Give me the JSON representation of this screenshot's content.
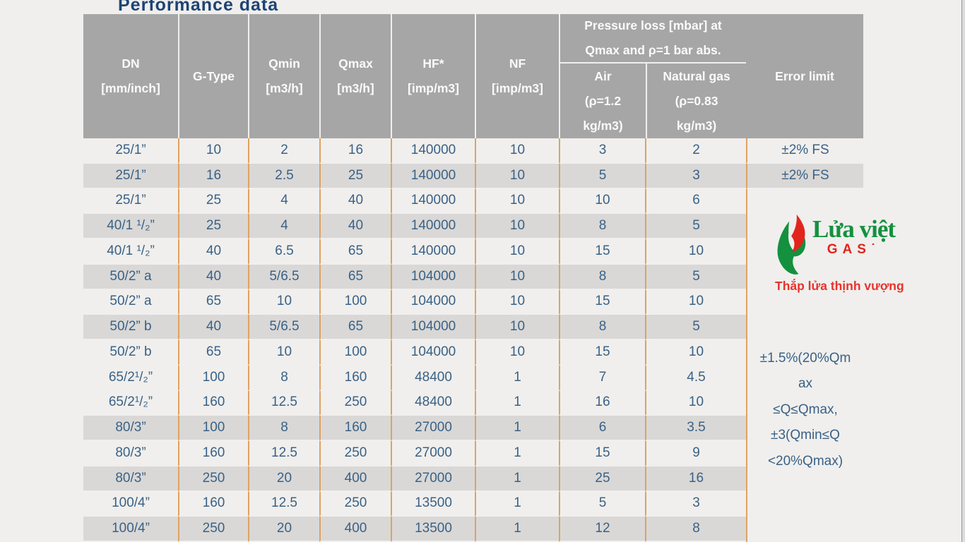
{
  "title": "Performance data",
  "header": {
    "dn": "DN\n[mm/inch]",
    "g_type": "G-Type",
    "qmin": "Qmin\n[m3/h]",
    "qmax": "Qmax\n[m3/h]",
    "hf": "HF*\n[imp/m3]",
    "nf": "NF\n[imp/m3]",
    "pressure_group": "Pressure loss [mbar] at\nQmax and ρ=1 bar abs.",
    "air": "Air\n(ρ=1.2\nkg/m3)",
    "natural_gas": "Natural gas\n(ρ=0.83\nkg/m3)",
    "error_limit": "Error limit"
  },
  "rows": [
    {
      "dn": "25/1”",
      "g_type": "10",
      "qmin": "2",
      "qmax": "16",
      "hf": "140000",
      "nf": "10",
      "air": "3",
      "gas": "2",
      "error": "±2% FS",
      "shade": "light"
    },
    {
      "dn": "25/1”",
      "g_type": "16",
      "qmin": "2.5",
      "qmax": "25",
      "hf": "140000",
      "nf": "10",
      "air": "5",
      "gas": "3",
      "error": "±2% FS",
      "shade": "gray"
    },
    {
      "dn": "25/1”",
      "g_type": "25",
      "qmin": "4",
      "qmax": "40",
      "hf": "140000",
      "nf": "10",
      "air": "10",
      "gas": "6",
      "error": null,
      "shade": "light"
    },
    {
      "dn": "40/1 ¹/₂”",
      "g_type": "25",
      "qmin": "4",
      "qmax": "40",
      "hf": "140000",
      "nf": "10",
      "air": "8",
      "gas": "5",
      "error": null,
      "shade": "gray"
    },
    {
      "dn": "40/1 ¹/₂”",
      "g_type": "40",
      "qmin": "6.5",
      "qmax": "65",
      "hf": "140000",
      "nf": "10",
      "air": "15",
      "gas": "10",
      "error": null,
      "shade": "light"
    },
    {
      "dn": "50/2” a",
      "g_type": "40",
      "qmin": "5/6.5",
      "qmax": "65",
      "hf": "104000",
      "nf": "10",
      "air": "8",
      "gas": "5",
      "error": null,
      "shade": "gray"
    },
    {
      "dn": "50/2” a",
      "g_type": "65",
      "qmin": "10",
      "qmax": "100",
      "hf": "104000",
      "nf": "10",
      "air": "15",
      "gas": "10",
      "error": null,
      "shade": "light"
    },
    {
      "dn": "50/2” b",
      "g_type": "40",
      "qmin": "5/6.5",
      "qmax": "65",
      "hf": "104000",
      "nf": "10",
      "air": "8",
      "gas": "5",
      "error": null,
      "shade": "gray"
    },
    {
      "dn": "50/2” b",
      "g_type": "65",
      "qmin": "10",
      "qmax": "100",
      "hf": "104000",
      "nf": "10",
      "air": "15",
      "gas": "10",
      "error": null,
      "shade": "light"
    },
    {
      "dn": "65/2¹/₂”",
      "g_type": "100",
      "qmin": "8",
      "qmax": "160",
      "hf": "48400",
      "nf": "1",
      "air": "7",
      "gas": "4.5",
      "error": null,
      "shade": "light"
    },
    {
      "dn": "65/2¹/₂”",
      "g_type": "160",
      "qmin": "12.5",
      "qmax": "250",
      "hf": "48400",
      "nf": "1",
      "air": "16",
      "gas": "10",
      "error": null,
      "shade": "light"
    },
    {
      "dn": "80/3”",
      "g_type": "100",
      "qmin": "8",
      "qmax": "160",
      "hf": "27000",
      "nf": "1",
      "air": "6",
      "gas": "3.5",
      "error": null,
      "shade": "gray"
    },
    {
      "dn": "80/3”",
      "g_type": "160",
      "qmin": "12.5",
      "qmax": "250",
      "hf": "27000",
      "nf": "1",
      "air": "15",
      "gas": "9",
      "error": null,
      "shade": "light"
    },
    {
      "dn": "80/3”",
      "g_type": "250",
      "qmin": "20",
      "qmax": "400",
      "hf": "27000",
      "nf": "1",
      "air": "25",
      "gas": "16",
      "error": null,
      "shade": "gray"
    },
    {
      "dn": "100/4”",
      "g_type": "160",
      "qmin": "12.5",
      "qmax": "250",
      "hf": "13500",
      "nf": "1",
      "air": "5",
      "gas": "3",
      "error": null,
      "shade": "light"
    },
    {
      "dn": "100/4”",
      "g_type": "250",
      "qmin": "20",
      "qmax": "400",
      "hf": "13500",
      "nf": "1",
      "air": "12",
      "gas": "8",
      "error": null,
      "shade": "gray"
    }
  ],
  "error_merged_text": "±1.5%(20%Qm\nax\n≤Q≤Qmax,\n±3(Qmin≤Q\n<20%Qmax)",
  "logo": {
    "brand": "Lửa việt",
    "gas": "GAS˙",
    "tagline": "Thắp lửa thịnh vượng"
  },
  "colors": {
    "header_bg": "#a6a6a6",
    "row_light": "#f0efed",
    "row_gray": "#d9d8d6",
    "cell_border_orange": "#dfa263",
    "body_text_blue": "#3a6186",
    "title_blue": "#1e4374",
    "logo_green": "#13913f",
    "logo_red": "#e2251c"
  }
}
